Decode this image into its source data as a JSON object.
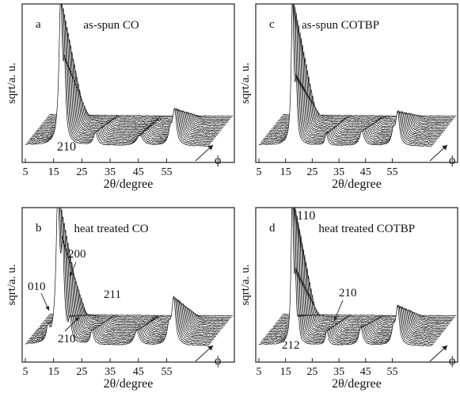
{
  "chart_data": [
    {
      "type": "line",
      "panel_letter": "a",
      "title": "as-spun CO",
      "xlabel": "2θ/degree",
      "ylabel": "sqrt/a. u.",
      "xticks": [
        "5",
        "15",
        "25",
        "35",
        "45",
        "55"
      ],
      "xlim": [
        5,
        70
      ],
      "depth_axis_label": "ϕ",
      "annotations": [
        "210"
      ],
      "series_count": 20,
      "peaks": [
        {
          "x": 17.5,
          "height": 1.0,
          "width": 0.7
        },
        {
          "x": 18.9,
          "height": 0.42,
          "width": 0.5
        },
        {
          "x": 29.8,
          "height": 0.09,
          "width": 0.8
        },
        {
          "x": 45.5,
          "height": 0.07,
          "width": 1.4
        },
        {
          "x": 57.8,
          "height": 0.24,
          "width": 0.8
        },
        {
          "x": 56.3,
          "height": 0.1,
          "width": 0.8
        }
      ]
    },
    {
      "type": "line",
      "panel_letter": "c",
      "title": "as-spun COTBP",
      "xlabel": "2θ/degree",
      "ylabel": "sqrt/a. u.",
      "xticks": [
        "5",
        "15",
        "25",
        "35",
        "45",
        "55"
      ],
      "xlim": [
        5,
        70
      ],
      "depth_axis_label": "ϕ",
      "annotations": [],
      "series_count": 20,
      "peaks": [
        {
          "x": 17.6,
          "height": 1.0,
          "width": 0.55
        },
        {
          "x": 19.0,
          "height": 0.35,
          "width": 0.45
        },
        {
          "x": 30.3,
          "height": 0.08,
          "width": 0.6
        },
        {
          "x": 43.6,
          "height": 0.1,
          "width": 1.0
        },
        {
          "x": 57.0,
          "height": 0.22,
          "width": 0.8
        },
        {
          "x": 55.4,
          "height": 0.09,
          "width": 0.8
        }
      ]
    },
    {
      "type": "line",
      "panel_letter": "b",
      "title": "heat treated CO",
      "xlabel": "2θ/degree",
      "ylabel": "sqrt/a. u.",
      "xticks": [
        "5",
        "15",
        "25",
        "35",
        "45",
        "55"
      ],
      "xlim": [
        5,
        70
      ],
      "depth_axis_label": "ϕ",
      "annotations": [
        "010",
        "200",
        "211",
        "210"
      ],
      "series_count": 20,
      "peaks": [
        {
          "x": 16.5,
          "height": 1.0,
          "width": 0.75
        },
        {
          "x": 18.2,
          "height": 0.58,
          "width": 0.65
        },
        {
          "x": 13.0,
          "height": 0.1,
          "width": 0.6
        },
        {
          "x": 20.8,
          "height": 0.14,
          "width": 0.6
        },
        {
          "x": 28.6,
          "height": 0.1,
          "width": 0.7
        },
        {
          "x": 44.4,
          "height": 0.1,
          "width": 1.1
        },
        {
          "x": 57.5,
          "height": 0.32,
          "width": 0.8
        },
        {
          "x": 55.8,
          "height": 0.12,
          "width": 0.8
        }
      ]
    },
    {
      "type": "line",
      "panel_letter": "d",
      "title": "heat treated COTBP",
      "xlabel": "2θ/degree",
      "ylabel": "sqrt/a. u.",
      "xticks": [
        "5",
        "15",
        "25",
        "35",
        "45",
        "55"
      ],
      "xlim": [
        5,
        70
      ],
      "depth_axis_label": "ϕ",
      "annotations": [
        "110",
        "210",
        "212"
      ],
      "series_count": 20,
      "peaks": [
        {
          "x": 17.5,
          "height": 1.0,
          "width": 0.5
        },
        {
          "x": 18.7,
          "height": 0.36,
          "width": 0.4
        },
        {
          "x": 19.9,
          "height": 0.12,
          "width": 0.4
        },
        {
          "x": 30.5,
          "height": 0.1,
          "width": 0.6
        },
        {
          "x": 43.2,
          "height": 0.12,
          "width": 0.9
        },
        {
          "x": 57.0,
          "height": 0.25,
          "width": 0.8
        },
        {
          "x": 55.4,
          "height": 0.1,
          "width": 0.8
        }
      ]
    }
  ]
}
